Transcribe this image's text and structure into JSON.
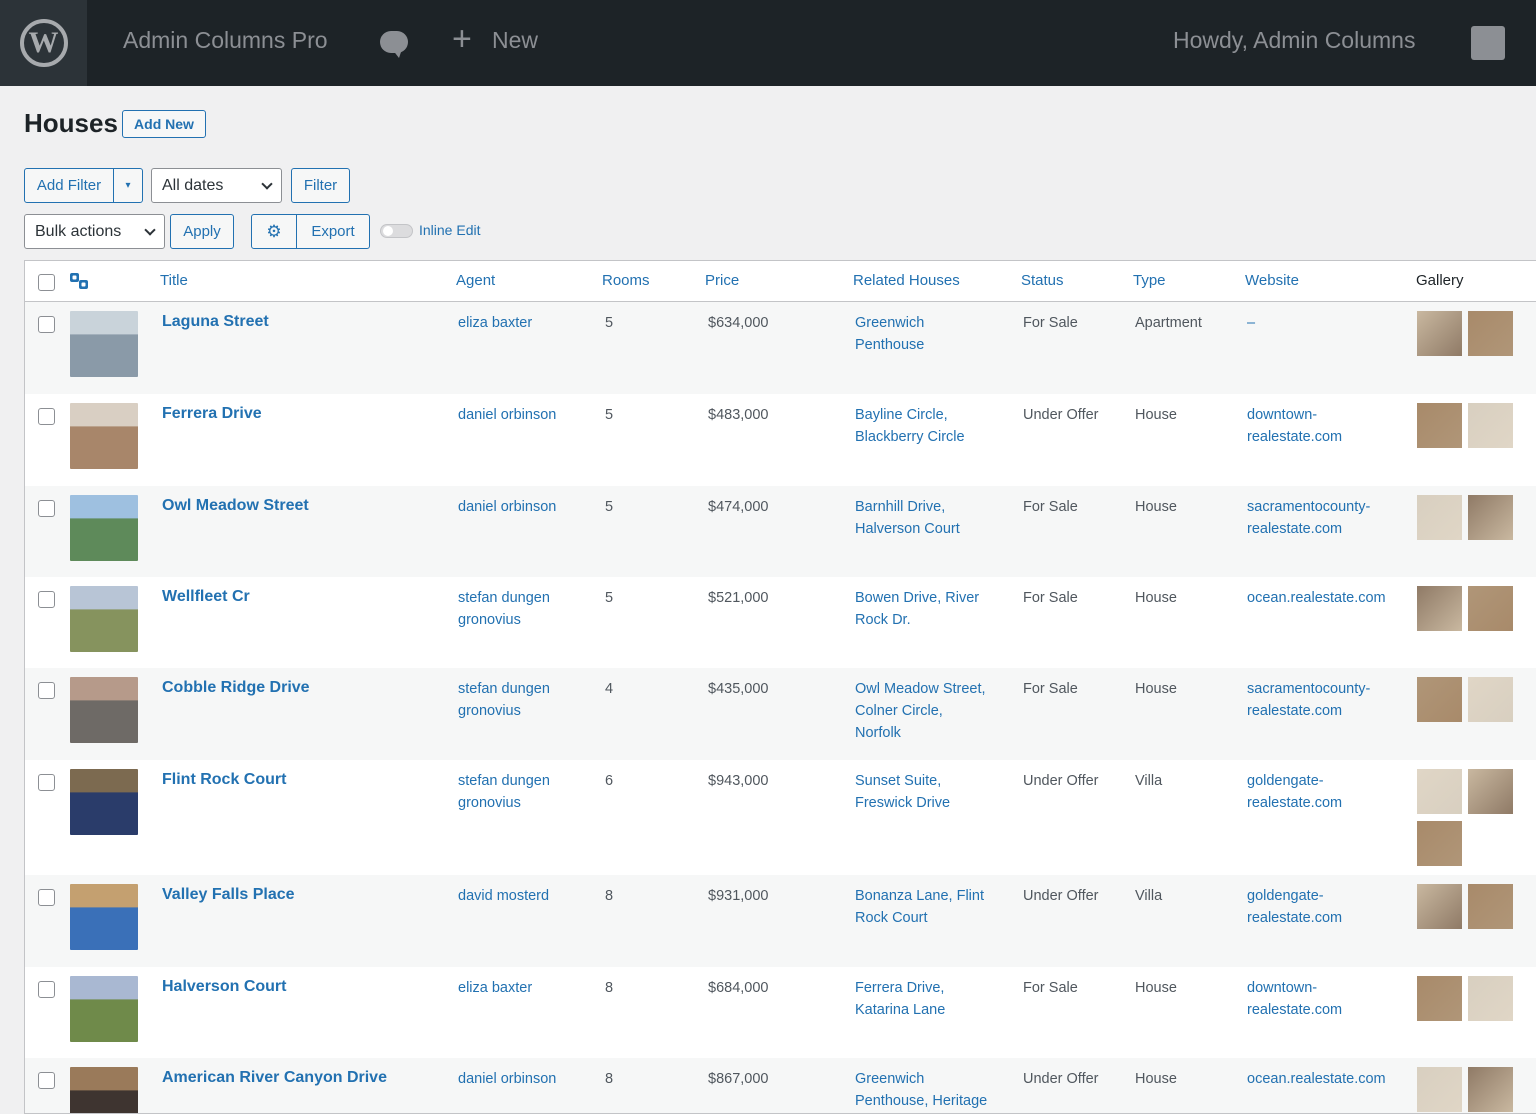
{
  "adminbar": {
    "site_name": "Admin Columns Pro",
    "new_label": "New",
    "howdy": "Howdy,  Admin Columns"
  },
  "header": {
    "title": "Houses",
    "add_new": "Add New"
  },
  "filters": {
    "add_filter": "Add Filter",
    "dates_select": "All dates",
    "filter_button": "Filter",
    "bulk_actions": "Bulk actions",
    "apply": "Apply",
    "export": "Export",
    "inline_edit": "Inline Edit"
  },
  "columns": [
    "Title",
    "Agent",
    "Rooms",
    "Price",
    "Related Houses",
    "Status",
    "Type",
    "Website",
    "Gallery"
  ],
  "colors": {
    "link": "#2271b1",
    "adminbar": "#1d2327"
  },
  "rows": [
    {
      "title": "Laguna Street",
      "agent": "eliza baxter",
      "rooms": "5",
      "price": "$634,000",
      "related": "Greenwich\nPenthouse",
      "status": "For Sale",
      "type": "Apartment",
      "website": "–"
    },
    {
      "title": "Ferrera Drive",
      "agent": "daniel orbinson",
      "rooms": "5",
      "price": "$483,000",
      "related": "Bayline Circle,\nBlackberry Circle",
      "status": "Under Offer",
      "type": "House",
      "website": "downtown-\nrealestate.com"
    },
    {
      "title": "Owl Meadow Street",
      "agent": "daniel orbinson",
      "rooms": "5",
      "price": "$474,000",
      "related": "Barnhill Drive,\nHalverson Court",
      "status": "For Sale",
      "type": "House",
      "website": "sacramentocounty-\nrealestate.com"
    },
    {
      "title": "Wellfleet Cr",
      "agent": "stefan dungen\ngronovius",
      "rooms": "5",
      "price": "$521,000",
      "related": "Bowen Drive, River\nRock Dr.",
      "status": "For Sale",
      "type": "House",
      "website": "ocean.realestate.com"
    },
    {
      "title": "Cobble Ridge Drive",
      "agent": "stefan dungen\ngronovius",
      "rooms": "4",
      "price": "$435,000",
      "related": "Owl Meadow Street,\nColner Circle,\nNorfolk",
      "status": "For Sale",
      "type": "House",
      "website": "sacramentocounty-\nrealestate.com"
    },
    {
      "title": "Flint Rock Court",
      "agent": "stefan dungen\ngronovius",
      "rooms": "6",
      "price": "$943,000",
      "related": "Sunset Suite,\nFreswick Drive",
      "status": "Under Offer",
      "type": "Villa",
      "website": "goldengate-\nrealestate.com"
    },
    {
      "title": "Valley Falls Place",
      "agent": "david mosterd",
      "rooms": "8",
      "price": "$931,000",
      "related": "Bonanza Lane, Flint\nRock Court",
      "status": "Under Offer",
      "type": "Villa",
      "website": "goldengate-\nrealestate.com"
    },
    {
      "title": "Halverson Court",
      "agent": "eliza baxter",
      "rooms": "8",
      "price": "$684,000",
      "related": "Ferrera Drive,\nKatarina Lane",
      "status": "For Sale",
      "type": "House",
      "website": "downtown-\nrealestate.com"
    },
    {
      "title": "American River Canyon Drive",
      "agent": "daniel orbinson",
      "rooms": "8",
      "price": "$867,000",
      "related": "Greenwich\nPenthouse, Heritage",
      "status": "Under Offer",
      "type": "House",
      "website": "ocean.realestate.com"
    }
  ]
}
